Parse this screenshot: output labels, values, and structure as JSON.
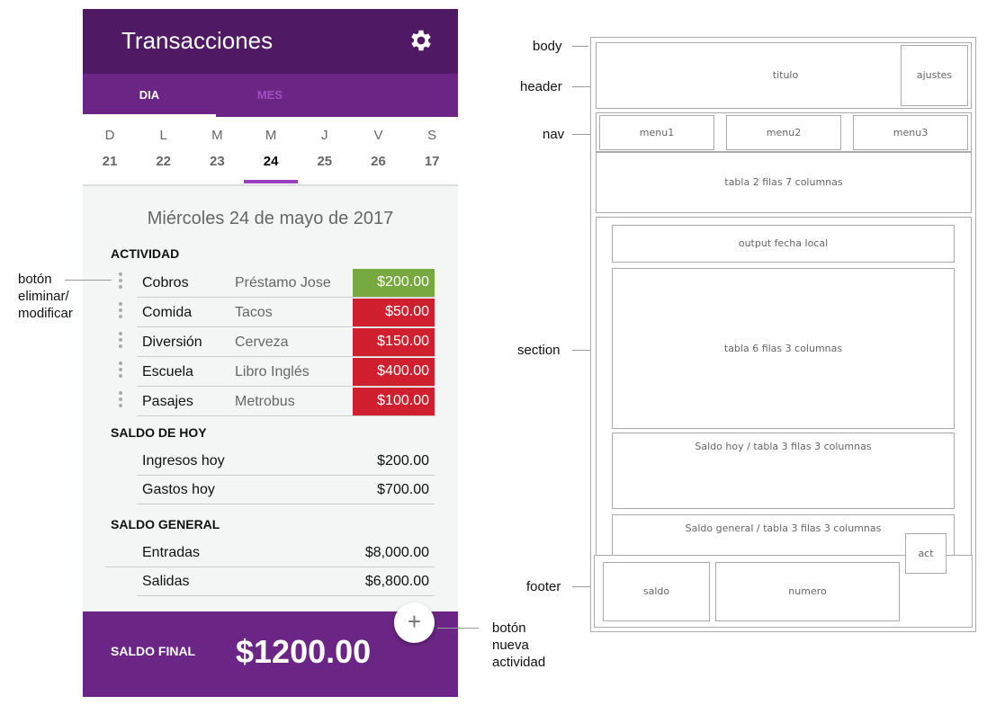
{
  "header": {
    "title": "Transacciones",
    "settings_icon": "gear-icon"
  },
  "tabs": [
    {
      "label": "DIA",
      "active": true
    },
    {
      "label": "MES",
      "active": false
    }
  ],
  "calendar": {
    "days": [
      {
        "letter": "D",
        "num": "21"
      },
      {
        "letter": "L",
        "num": "22"
      },
      {
        "letter": "M",
        "num": "23"
      },
      {
        "letter": "M",
        "num": "24",
        "selected": true
      },
      {
        "letter": "J",
        "num": "25"
      },
      {
        "letter": "V",
        "num": "26"
      },
      {
        "letter": "S",
        "num": "17"
      }
    ]
  },
  "date_heading": "Miércoles 24 de mayo de 2017",
  "actividad": {
    "title": "ACTIVIDAD",
    "rows": [
      {
        "category": "Cobros",
        "desc": "Préstamo Jose",
        "amount": "$200.00",
        "type": "income"
      },
      {
        "category": "Comida",
        "desc": "Tacos",
        "amount": "$50.00",
        "type": "expense"
      },
      {
        "category": "Diversión",
        "desc": "Cerveza",
        "amount": "$150.00",
        "type": "expense"
      },
      {
        "category": "Escuela",
        "desc": "Libro Inglés",
        "amount": "$400.00",
        "type": "expense"
      },
      {
        "category": "Pasajes",
        "desc": "Metrobus",
        "amount": "$100.00",
        "type": "expense"
      }
    ]
  },
  "saldo_hoy": {
    "title": "SALDO DE HOY",
    "rows": [
      {
        "label": "Ingresos hoy",
        "value": "$200.00"
      },
      {
        "label": "Gastos hoy",
        "value": "$700.00"
      }
    ]
  },
  "saldo_general": {
    "title": "SALDO GENERAL",
    "rows": [
      {
        "label": "Entradas",
        "value": "$8,000.00"
      },
      {
        "label": "Salidas",
        "value": "$6,800.00"
      }
    ]
  },
  "footer": {
    "label": "SALDO FINAL",
    "value": "$1200.00"
  },
  "fab": {
    "label": "+"
  },
  "colors": {
    "header": "#4f1964",
    "tabs": "#6b2585",
    "income": "#78a940",
    "expense": "#d0202f",
    "accent": "#9a3fbf"
  },
  "annotations": {
    "body": "body",
    "header": "header",
    "nav": "nav",
    "section": "section",
    "footer": "footer",
    "delete_btn": [
      "botón",
      "eliminar/",
      "modificar"
    ],
    "new_btn": [
      "botón",
      "nueva",
      "actividad"
    ]
  },
  "wireframe": {
    "titulo": "titulo",
    "ajustes": "ajustes",
    "menu1": "menu1",
    "menu2": "menu2",
    "menu3": "menu3",
    "tabla7": "tabla 2 filas 7 columnas",
    "fecha": "output fecha local",
    "tabla6": "tabla 6 filas 3 columnas",
    "saldo_hoy": "Saldo hoy / tabla 3 filas 3 columnas",
    "saldo_general": "Saldo general / tabla 3 filas 3 columnas",
    "act": "act",
    "saldo": "saldo",
    "numero": "numero"
  }
}
